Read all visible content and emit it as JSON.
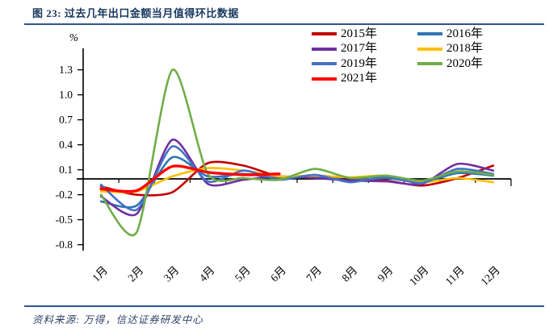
{
  "figure": {
    "title": "图 23: 过去几年出口金额当月值得环比数据",
    "source": "资料来源: 万得，信达证券研发中心"
  },
  "chart_data": {
    "type": "line",
    "title": "过去几年出口金额当月值得环比数据",
    "unit_label": "%",
    "xlabel": "",
    "ylabel": "%",
    "categories": [
      "1月",
      "2月",
      "3月",
      "4月",
      "5月",
      "6月",
      "7月",
      "8月",
      "9月",
      "10月",
      "11月",
      "12月"
    ],
    "yticks": [
      1.3,
      1.0,
      0.7,
      0.4,
      0.1,
      -0.2,
      -0.5,
      -0.8
    ],
    "ylim": [
      -0.8,
      1.45
    ],
    "grid": false,
    "legend_position": "top-right",
    "smoothed_lines": true,
    "series": [
      {
        "name": "2015年",
        "color": "#C00000",
        "values": [
          -0.1,
          -0.2,
          -0.17,
          0.18,
          0.15,
          0.02,
          0.03,
          0.0,
          -0.03,
          -0.09,
          0.0,
          0.15
        ]
      },
      {
        "name": "2016年",
        "color": "#2E75B6",
        "values": [
          -0.28,
          -0.33,
          0.25,
          0.02,
          0.05,
          0.0,
          0.02,
          -0.03,
          0.0,
          -0.05,
          0.06,
          0.03
        ]
      },
      {
        "name": "2017年",
        "color": "#7030A0",
        "values": [
          -0.22,
          -0.43,
          0.46,
          -0.07,
          -0.02,
          0.02,
          0.0,
          -0.03,
          -0.04,
          -0.07,
          0.17,
          0.09
        ]
      },
      {
        "name": "2018年",
        "color": "#FFC000",
        "values": [
          -0.16,
          -0.16,
          0.02,
          0.12,
          0.09,
          0.02,
          0.03,
          0.01,
          0.03,
          -0.05,
          0.0,
          -0.05
        ]
      },
      {
        "name": "2019年",
        "color": "#4472C4",
        "values": [
          -0.08,
          -0.38,
          0.38,
          -0.04,
          0.09,
          -0.02,
          0.04,
          -0.05,
          0.02,
          -0.06,
          0.11,
          0.05
        ]
      },
      {
        "name": "2020年",
        "color": "#70AD47",
        "values": [
          -0.2,
          -0.65,
          1.3,
          0.05,
          0.0,
          -0.02,
          0.11,
          0.0,
          0.03,
          -0.03,
          0.08,
          0.04
        ]
      },
      {
        "name": "2021年",
        "color": "#FF0000",
        "values": [
          -0.13,
          -0.15,
          0.14,
          0.07,
          0.04,
          0.05,
          null,
          null,
          null,
          null,
          null,
          null
        ]
      }
    ]
  }
}
